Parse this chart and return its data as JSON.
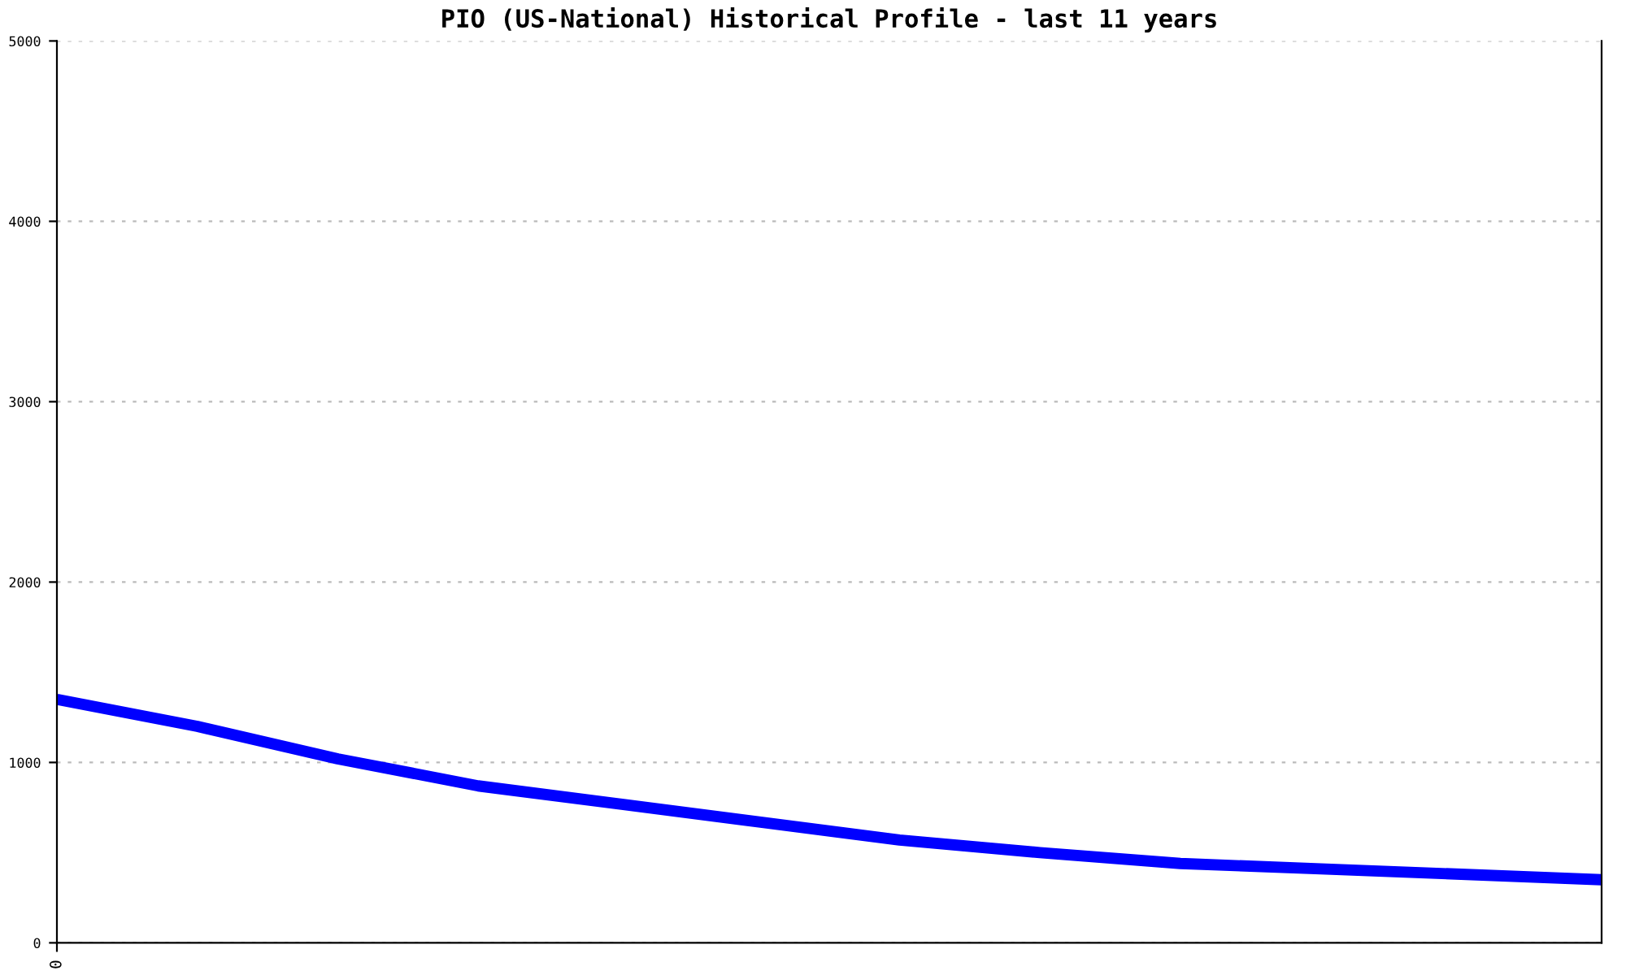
{
  "chart_data": {
    "type": "line",
    "title": "PIO (US-National) Historical Profile - last 11 years",
    "categories": [
      "0",
      null,
      null,
      null,
      null,
      null,
      null,
      null,
      null,
      null,
      null,
      null
    ],
    "series": [
      {
        "color": "#0000ff",
        "values": [
          1350,
          1200,
          1020,
          870,
          770,
          670,
          570,
          500,
          440,
          410,
          380,
          350
        ]
      }
    ],
    "ylim": [
      0,
      5000
    ],
    "yticks": [
      0,
      1000,
      2000,
      3000,
      4000,
      5000
    ],
    "grid": "y",
    "marker": "none",
    "line_style": "solid"
  }
}
